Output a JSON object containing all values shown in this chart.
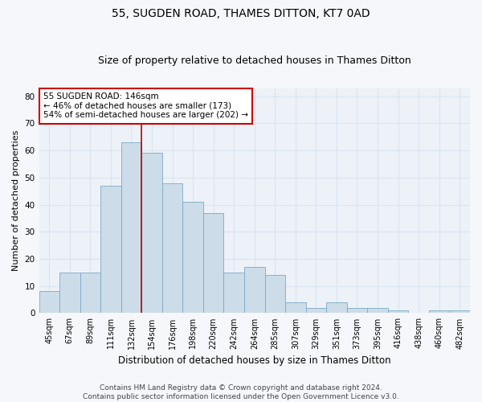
{
  "title": "55, SUGDEN ROAD, THAMES DITTON, KT7 0AD",
  "subtitle": "Size of property relative to detached houses in Thames Ditton",
  "xlabel": "Distribution of detached houses by size in Thames Ditton",
  "ylabel": "Number of detached properties",
  "categories": [
    "45sqm",
    "67sqm",
    "89sqm",
    "111sqm",
    "132sqm",
    "154sqm",
    "176sqm",
    "198sqm",
    "220sqm",
    "242sqm",
    "264sqm",
    "285sqm",
    "307sqm",
    "329sqm",
    "351sqm",
    "373sqm",
    "395sqm",
    "416sqm",
    "438sqm",
    "460sqm",
    "482sqm"
  ],
  "values": [
    8,
    15,
    15,
    47,
    63,
    59,
    48,
    41,
    37,
    15,
    17,
    14,
    4,
    2,
    4,
    2,
    2,
    1,
    0,
    1,
    1
  ],
  "bar_color": "#ccdce8",
  "bar_edge_color": "#7aaac8",
  "vline_x_index": 4.5,
  "vline_color": "#bb0000",
  "annotation_text": "55 SUGDEN ROAD: 146sqm\n← 46% of detached houses are smaller (173)\n54% of semi-detached houses are larger (202) →",
  "annotation_box_color": "#ffffff",
  "annotation_box_edge_color": "#cc0000",
  "ylim": [
    0,
    83
  ],
  "yticks": [
    0,
    10,
    20,
    30,
    40,
    50,
    60,
    70,
    80
  ],
  "title_fontsize": 10,
  "subtitle_fontsize": 9,
  "xlabel_fontsize": 8.5,
  "ylabel_fontsize": 8,
  "annotation_fontsize": 7.5,
  "footnote": "Contains HM Land Registry data © Crown copyright and database right 2024.\nContains public sector information licensed under the Open Government Licence v3.0.",
  "footnote_fontsize": 6.5,
  "bg_color": "#edf2f8",
  "grid_color": "#d8e4f0",
  "fig_bg_color": "#f5f7fa"
}
